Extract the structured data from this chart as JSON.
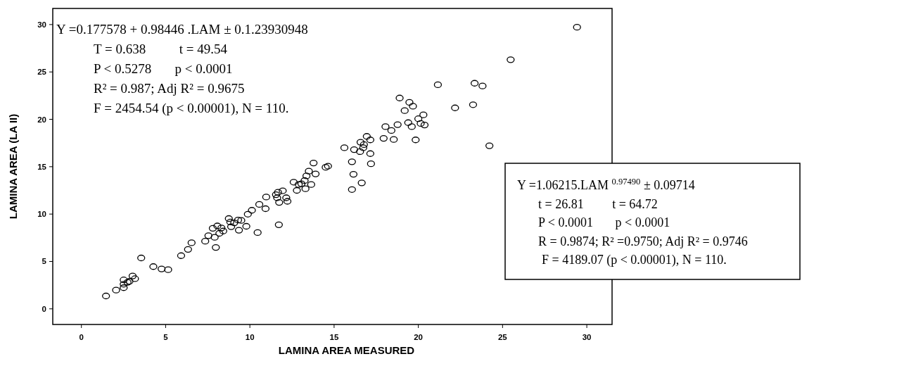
{
  "chart_data": {
    "type": "scatter",
    "xlabel": "LAMINA AREA MEASURED",
    "ylabel": "LAMINA AREA (LA II)",
    "xlim": [
      -1.7,
      31.5
    ],
    "ylim": [
      -1.65,
      31.7
    ],
    "xticks": [
      0,
      5,
      10,
      15,
      20,
      25,
      30
    ],
    "yticks": [
      0,
      5,
      10,
      15,
      20,
      25,
      30
    ],
    "grid": false,
    "marker": "circle",
    "x": [
      1.46,
      2.06,
      2.51,
      2.51,
      2.51,
      2.74,
      2.85,
      3.04,
      3.18,
      3.55,
      4.27,
      4.76,
      5.15,
      5.92,
      6.33,
      6.54,
      7.35,
      7.54,
      7.8,
      7.91,
      7.98,
      8.07,
      8.19,
      8.31,
      8.42,
      8.75,
      8.84,
      8.89,
      9.07,
      9.3,
      9.49,
      9.35,
      9.79,
      9.88,
      10.12,
      10.46,
      10.56,
      10.93,
      10.97,
      11.55,
      11.67,
      11.62,
      11.72,
      11.74,
      11.95,
      12.16,
      12.23,
      12.6,
      12.79,
      12.9,
      13.06,
      13.25,
      13.3,
      13.36,
      13.5,
      13.64,
      13.78,
      13.9,
      14.5,
      14.64,
      15.61,
      16.06,
      16.15,
      16.06,
      16.19,
      16.54,
      16.57,
      16.64,
      16.73,
      16.77,
      16.94,
      17.15,
      17.15,
      17.19,
      17.94,
      18.05,
      18.4,
      18.54,
      18.77,
      18.89,
      19.19,
      19.4,
      19.47,
      19.61,
      19.68,
      19.84,
      20.0,
      20.14,
      20.3,
      20.37,
      21.16,
      22.18,
      23.25,
      23.34,
      23.81,
      24.22,
      25.48,
      29.42
    ],
    "series": [
      {
        "color": "#000000",
        "values": [
          1.36,
          1.98,
          2.6,
          3.05,
          2.23,
          2.8,
          2.9,
          3.47,
          3.18,
          5.37,
          4.46,
          4.21,
          4.13,
          5.61,
          6.27,
          6.97,
          7.14,
          7.72,
          8.5,
          7.55,
          6.48,
          8.75,
          7.97,
          8.54,
          8.21,
          9.53,
          9.16,
          8.67,
          9.08,
          9.37,
          9.33,
          8.3,
          8.71,
          9.99,
          10.4,
          8.05,
          11.02,
          10.57,
          11.8,
          12.05,
          12.3,
          11.72,
          8.87,
          11.23,
          12.46,
          11.72,
          11.35,
          13.37,
          12.5,
          13.12,
          13.2,
          13.54,
          12.67,
          14.03,
          14.53,
          13.12,
          15.39,
          14.24,
          14.94,
          15.06,
          17.0,
          15.52,
          14.2,
          12.59,
          16.8,
          16.59,
          17.58,
          13.29,
          17.0,
          17.33,
          18.2,
          17.83,
          16.38,
          15.31,
          17.99,
          19.23,
          18.82,
          17.87,
          19.44,
          22.25,
          20.92,
          19.65,
          21.79,
          19.23,
          21.38,
          17.83,
          20.06,
          19.56,
          20.47,
          19.4,
          23.65,
          21.21,
          21.54,
          23.81,
          23.52,
          17.21,
          26.29,
          29.72
        ]
      }
    ],
    "annotations": [
      "Y =0.177578 + 0.98446 .LAM ± 0.1.23930948",
      "T = 0.638          t = 49.54",
      "P < 0.5278       p < 0.0001",
      "R² = 0.987; Adj R² = 0.9675",
      "F = 2454.54 (p < 0.00001), N = 110.",
      "Y =1.06215.LAM $^{0.97490}$ ± 0.09714",
      "t = 26.81         t = 64.72",
      "P < 0.0001       p < 0.0001",
      "R = 0.9874; R² =0.9750; Adj R² = 0.9746",
      "F = 4189.07 (p < 0.00001), N = 110."
    ]
  }
}
